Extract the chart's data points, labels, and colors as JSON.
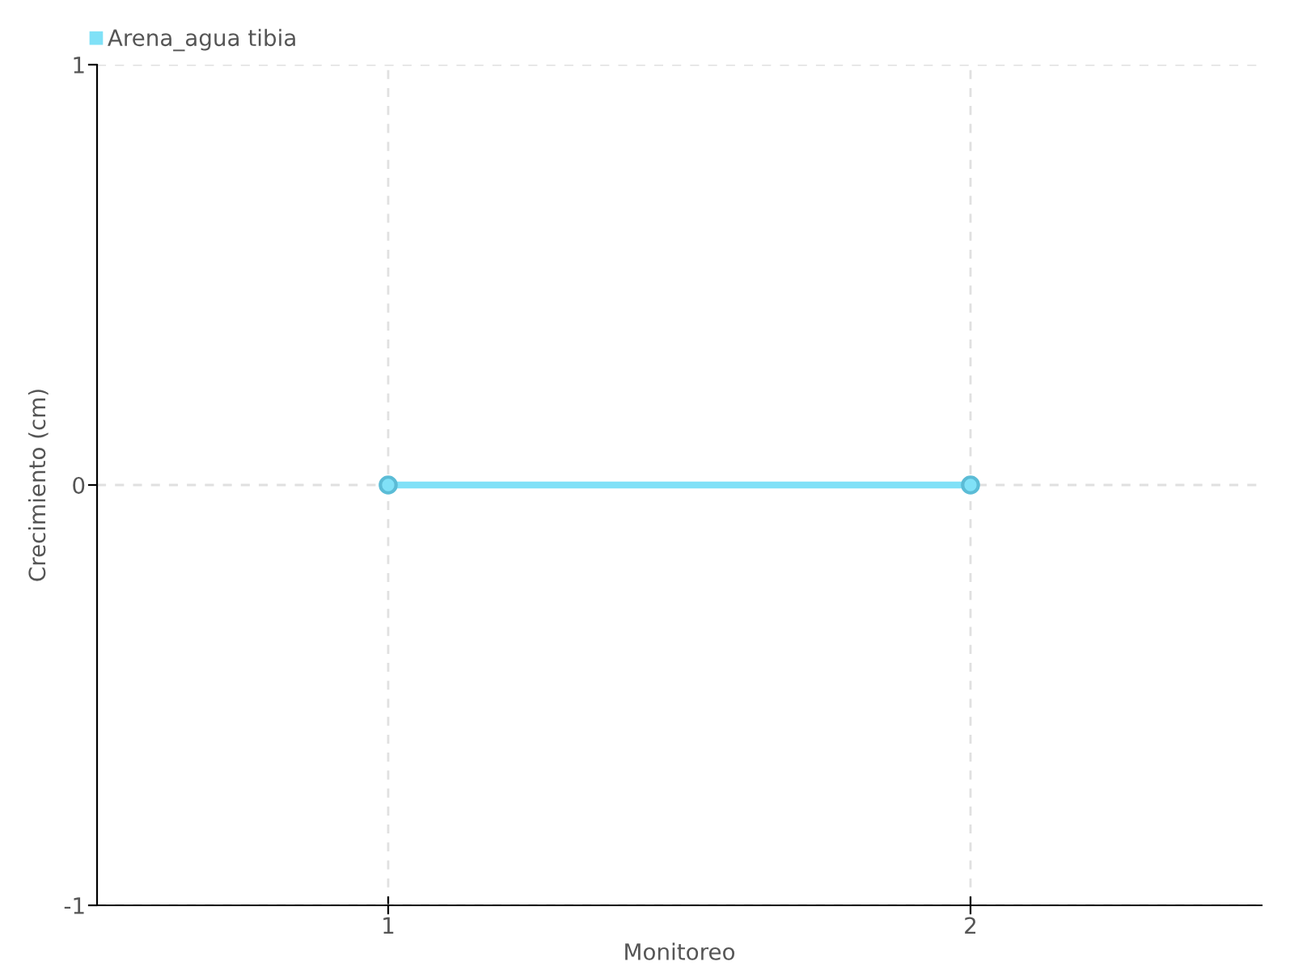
{
  "chart_data": {
    "type": "line",
    "xlabel": "Monitoreo",
    "ylabel": "Crecimiento (cm)",
    "categories": [
      "1",
      "2"
    ],
    "series": [
      {
        "name": "Arena_agua tibia",
        "color": "#80e1f7",
        "values": [
          0,
          0
        ]
      }
    ],
    "ylim": [
      -1,
      1
    ],
    "yticks": [
      -1,
      0,
      1
    ],
    "grid": true,
    "legend": "top left",
    "marker": "circle",
    "line_style": "solid"
  }
}
